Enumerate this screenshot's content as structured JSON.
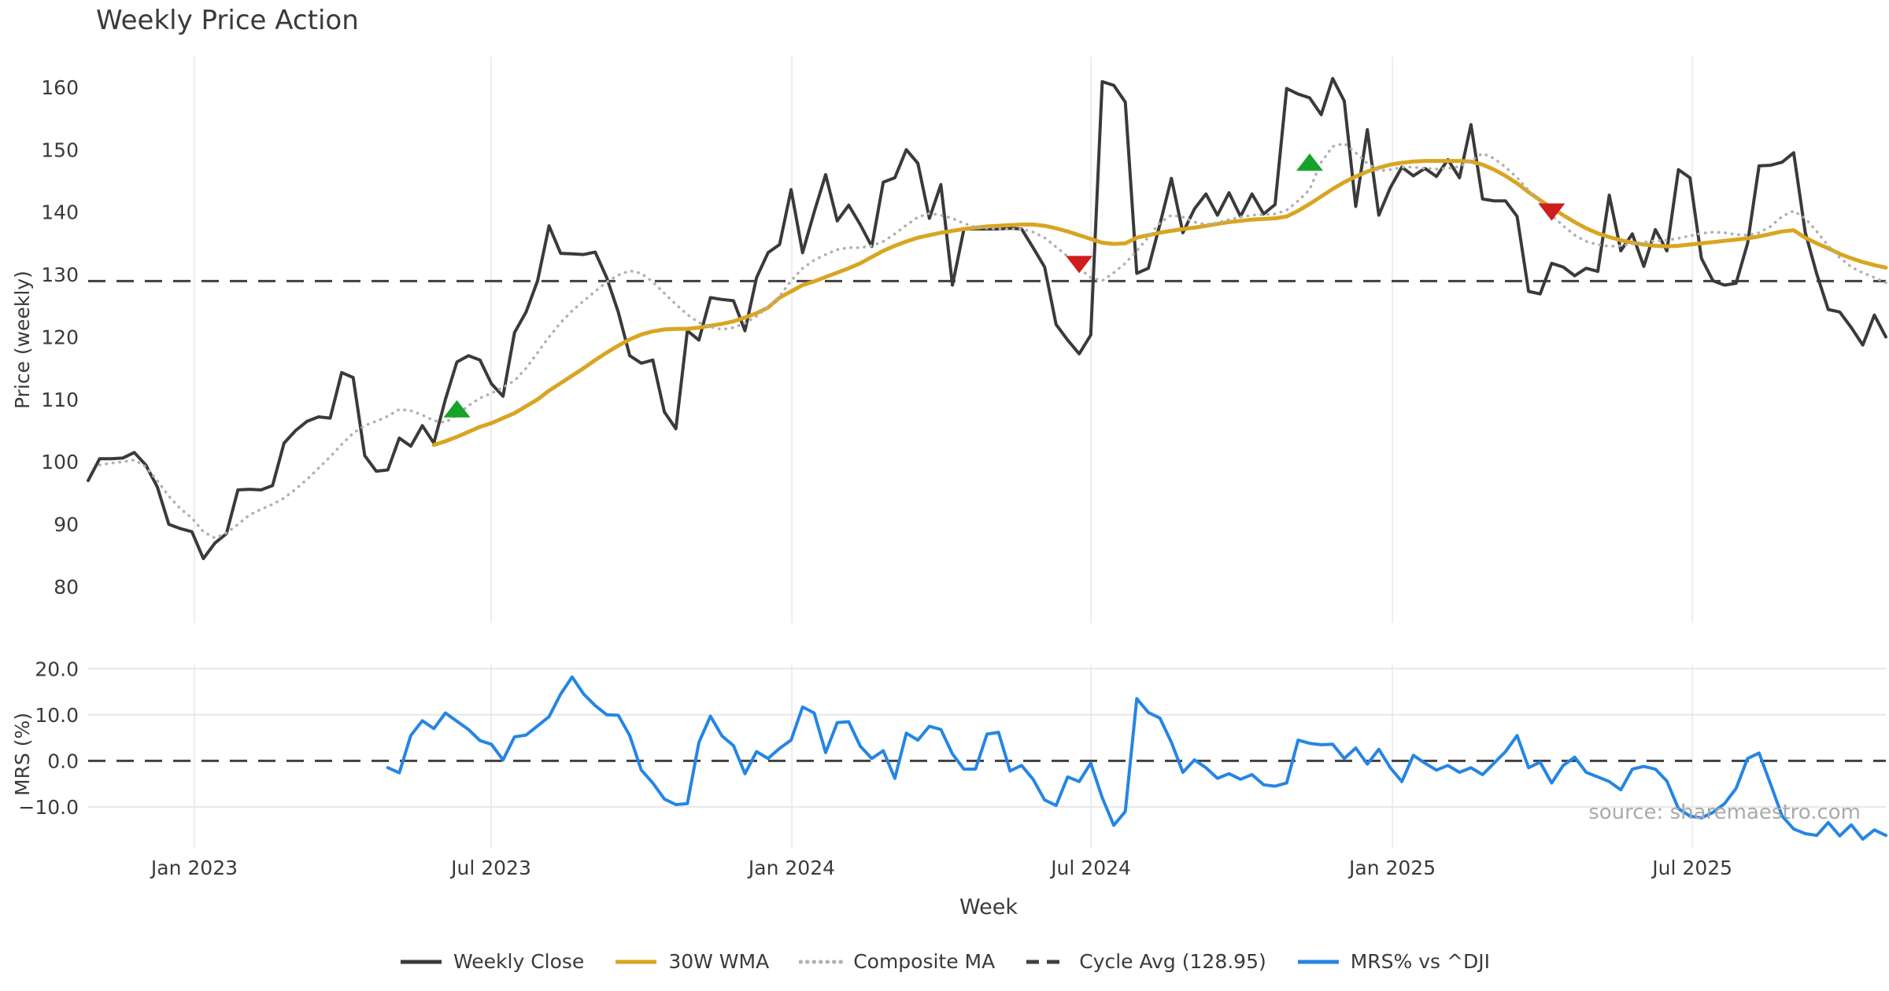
{
  "title": "Weekly Price Action",
  "source_note": "source: sharemaestro.com",
  "legend": [
    {
      "label": "Weekly Close",
      "color": "#3a3a3a",
      "style": "solid"
    },
    {
      "label": "30W WMA",
      "color": "#d9a521",
      "style": "solid"
    },
    {
      "label": "Composite MA",
      "color": "#b0b0b0",
      "style": "dotted"
    },
    {
      "label": "Cycle Avg (128.95)",
      "color": "#404040",
      "style": "dashed"
    },
    {
      "label": "MRS% vs ^DJI",
      "color": "#2585e4",
      "style": "solid"
    }
  ],
  "chart_data": {
    "type": "line",
    "xlabel": "Week",
    "x_ticks": [
      {
        "pos": 9.22,
        "label": "Jan 2023"
      },
      {
        "pos": 34.97,
        "label": "Jul 2023"
      },
      {
        "pos": 61.06,
        "label": "Jan 2024"
      },
      {
        "pos": 87.02,
        "label": "Jul 2024"
      },
      {
        "pos": 113.18,
        "label": "Jan 2025"
      },
      {
        "pos": 139.21,
        "label": "Jul 2025"
      }
    ],
    "weeks_total": 157,
    "panels": [
      {
        "name": "price",
        "ylabel": "Price (weekly)",
        "ylim": [
          74.2,
          164.9
        ],
        "yticks": [
          {
            "v": 80,
            "label": "80"
          },
          {
            "v": 90,
            "label": "90"
          },
          {
            "v": 100,
            "label": "100"
          },
          {
            "v": 110,
            "label": "110"
          },
          {
            "v": 120,
            "label": "120"
          },
          {
            "v": 130,
            "label": "130"
          },
          {
            "v": 140,
            "label": "140"
          },
          {
            "v": 150,
            "label": "150"
          },
          {
            "v": 160,
            "label": "160"
          }
        ],
        "hline": {
          "value": 128.95,
          "label": "Cycle Avg (128.95)",
          "color": "#404040",
          "style": "dashed"
        },
        "series": [
          {
            "name": "Weekly Close",
            "color": "#3a3a3a",
            "width": 4,
            "style": "solid",
            "start_week": 0,
            "values": [
              97.0,
              100.5,
              100.5,
              100.6,
              101.5,
              99.5,
              96.0,
              90.0,
              89.3,
              88.8,
              84.5,
              87.0,
              88.5,
              95.5,
              95.6,
              95.5,
              96.2,
              103.0,
              105.0,
              106.5,
              107.2,
              107.0,
              114.3,
              113.5,
              101.0,
              98.5,
              98.7,
              103.8,
              102.5,
              105.8,
              103.0,
              110.0,
              116.0,
              117.0,
              116.3,
              112.5,
              110.5,
              120.7,
              124.0,
              129.0,
              137.8,
              133.4,
              133.3,
              133.2,
              133.6,
              129.5,
              124.0,
              117.0,
              115.8,
              116.3,
              108.0,
              105.3,
              121.0,
              119.5,
              126.3,
              126.0,
              125.8,
              121.0,
              129.5,
              133.5,
              134.8,
              143.6,
              133.5,
              140.0,
              146.0,
              138.6,
              141.1,
              138.0,
              134.5,
              144.8,
              145.5,
              150.0,
              147.8,
              139.0,
              144.4,
              128.3,
              137.3,
              137.3,
              137.3,
              137.3,
              137.4,
              137.3,
              134.3,
              131.2,
              122.0,
              119.5,
              117.3,
              120.3,
              160.9,
              160.3,
              157.6,
              130.2,
              131.0,
              138.0,
              145.4,
              136.7,
              140.5,
              142.9,
              139.5,
              143.1,
              139.3,
              142.9,
              139.7,
              141.2,
              159.8,
              158.9,
              158.3,
              155.6,
              161.4,
              157.8,
              140.9,
              153.2,
              139.5,
              143.9,
              147.2,
              145.8,
              147.0,
              145.7,
              148.4,
              145.5,
              154.0,
              142.1,
              141.8,
              141.8,
              139.3,
              127.3,
              126.9,
              131.8,
              131.2,
              129.8,
              131.0,
              130.5,
              142.7,
              133.8,
              136.5,
              131.3,
              137.2,
              133.8,
              146.8,
              145.5,
              132.6,
              129.0,
              128.3,
              128.6,
              135.0,
              147.4,
              147.5,
              148.0,
              149.5,
              136.8,
              130.1,
              124.4,
              124.0,
              121.5,
              118.7,
              123.5,
              120.0
            ]
          },
          {
            "name": "30W WMA",
            "color": "#d9a521",
            "width": 5,
            "style": "solid",
            "start_week": 30,
            "values": [
              102.7,
              103.3,
              104.0,
              104.8,
              105.6,
              106.2,
              107.0,
              107.8,
              108.9,
              110.0,
              111.4,
              112.6,
              113.8,
              115.0,
              116.3,
              117.5,
              118.6,
              119.6,
              120.4,
              120.9,
              121.2,
              121.3,
              121.3,
              121.5,
              121.8,
              122.1,
              122.5,
              123.1,
              123.8,
              124.7,
              126.3,
              127.3,
              128.3,
              128.9,
              129.6,
              130.3,
              131.0,
              131.8,
              132.8,
              133.8,
              134.6,
              135.3,
              135.9,
              136.3,
              136.7,
              137.0,
              137.3,
              137.5,
              137.7,
              137.8,
              137.9,
              138.0,
              138.0,
              137.8,
              137.4,
              136.9,
              136.3,
              135.7,
              135.1,
              134.9,
              135.0,
              135.9,
              136.3,
              136.7,
              137.0,
              137.3,
              137.5,
              137.8,
              138.1,
              138.4,
              138.6,
              138.8,
              138.9,
              139.0,
              139.3,
              140.2,
              141.3,
              142.5,
              143.7,
              144.8,
              145.7,
              146.5,
              147.1,
              147.6,
              147.9,
              148.1,
              148.2,
              148.2,
              148.2,
              148.2,
              148.1,
              147.6,
              146.8,
              145.8,
              144.6,
              143.2,
              141.9,
              140.7,
              139.5,
              138.4,
              137.4,
              136.6,
              136.0,
              135.5,
              135.1,
              134.8,
              134.6,
              134.5,
              134.6,
              134.8,
              135.0,
              135.2,
              135.4,
              135.6,
              135.8,
              136.1,
              136.5,
              136.9,
              137.1,
              135.9,
              135.0,
              134.2,
              133.3,
              132.6,
              132.0,
              131.5,
              131.1
            ]
          },
          {
            "name": "Composite MA",
            "color": "#b0b0b0",
            "width": 3.5,
            "style": "dotted",
            "start_week": 1,
            "values": [
              99.5,
              99.8,
              100.0,
              100.3,
              99.2,
              97.0,
              94.5,
              92.5,
              91.0,
              88.8,
              87.8,
              88.6,
              90.0,
              91.5,
              92.4,
              93.2,
              94.2,
              95.6,
              97.2,
              99.0,
              100.8,
              102.8,
              104.6,
              105.8,
              106.5,
              107.3,
              108.4,
              108.2,
              107.5,
              106.6,
              106.3,
              107.5,
              109.0,
              110.2,
              111.0,
              111.9,
              113.0,
              115.0,
              117.5,
              120.0,
              122.3,
              124.2,
              125.8,
              127.3,
              128.8,
              129.9,
              130.6,
              130.2,
              128.8,
              127.0,
              125.2,
              123.6,
              122.3,
              121.6,
              121.2,
              121.5,
              122.2,
              123.3,
              124.8,
              126.5,
              129.0,
              131.0,
              132.3,
              133.2,
              134.0,
              134.3,
              134.3,
              134.6,
              135.3,
              136.5,
              137.9,
              139.2,
              139.8,
              139.5,
              139.0,
              138.2,
              137.6,
              137.4,
              137.3,
              137.3,
              137.3,
              136.8,
              135.9,
              134.4,
              132.9,
              131.0,
              129.5,
              129.0,
              130.3,
              131.8,
              133.8,
              136.0,
              138.3,
              139.5,
              139.2,
              138.4,
              138.0,
              138.3,
              138.8,
              139.2,
              139.5,
              139.6,
              139.7,
              140.3,
              141.8,
              143.6,
              148.0,
              150.5,
              151.0,
              149.5,
              147.8,
              146.6,
              146.8,
              147.2,
              147.2,
              147.0,
              146.9,
              147.0,
              147.3,
              148.2,
              149.4,
              148.6,
              147.2,
              145.5,
              143.5,
              141.5,
              139.5,
              137.8,
              136.3,
              135.3,
              134.8,
              134.5,
              134.6,
              134.9,
              135.2,
              135.4,
              135.5,
              135.8,
              136.2,
              136.6,
              136.8,
              136.7,
              136.4,
              136.3,
              136.7,
              137.7,
              139.3,
              140.2,
              139.0,
              136.9,
              134.6,
              132.7,
              131.2,
              130.3,
              129.5,
              128.7
            ]
          }
        ],
        "markers": [
          {
            "shape": "triangle-up",
            "color": "#16a32b",
            "week": 32,
            "value": 108.5
          },
          {
            "shape": "triangle-up",
            "color": "#16a32b",
            "week": 106,
            "value": 148.0
          },
          {
            "shape": "triangle-down",
            "color": "#cf1d1d",
            "week": 86,
            "value": 131.6
          },
          {
            "shape": "triangle-down",
            "color": "#cf1d1d",
            "week": 127,
            "value": 140.0
          }
        ]
      },
      {
        "name": "mrs",
        "ylabel": "MRS (%)",
        "ylim": [
          -18.9,
          20.9
        ],
        "yticks": [
          {
            "v": 20,
            "label": "20.0"
          },
          {
            "v": 10,
            "label": "10.0"
          },
          {
            "v": 0,
            "label": "0.0"
          },
          {
            "v": -10,
            "label": "−10.0"
          }
        ],
        "hline": {
          "value": 0,
          "color": "#404040",
          "style": "dashed"
        },
        "grid_y": [
          20,
          10,
          -10
        ],
        "series": [
          {
            "name": "MRS% vs ^DJI",
            "color": "#2585e4",
            "width": 4,
            "style": "solid",
            "start_week": 26,
            "values": [
              -1.5,
              -2.6,
              5.5,
              8.7,
              7.0,
              10.4,
              8.6,
              6.8,
              4.4,
              3.6,
              0.2,
              5.2,
              5.6,
              7.6,
              9.6,
              14.5,
              18.2,
              14.5,
              12.0,
              10.0,
              9.9,
              5.5,
              -2.0,
              -4.8,
              -8.3,
              -9.5,
              -9.3,
              4.0,
              9.7,
              5.4,
              3.3,
              -2.8,
              2.0,
              0.5,
              2.7,
              4.5,
              11.7,
              10.4,
              1.8,
              8.3,
              8.5,
              3.2,
              0.5,
              2.2,
              -3.8,
              6.0,
              4.5,
              7.5,
              6.8,
              1.5,
              -1.8,
              -1.8,
              5.8,
              6.2,
              -2.2,
              -1.0,
              -4.0,
              -8.5,
              -9.7,
              -3.5,
              -4.5,
              -0.5,
              -8.0,
              -14.0,
              -11.0,
              13.5,
              10.5,
              9.3,
              4.0,
              -2.5,
              0.2,
              -1.5,
              -3.8,
              -2.8,
              -4.0,
              -3.0,
              -5.2,
              -5.5,
              -4.8,
              4.5,
              3.8,
              3.5,
              3.6,
              0.5,
              2.8,
              -0.7,
              2.5,
              -1.5,
              -4.5,
              1.2,
              -0.5,
              -2.0,
              -1.0,
              -2.5,
              -1.5,
              -3.0,
              -0.5,
              2.0,
              5.5,
              -1.5,
              -0.3,
              -4.8,
              -1.0,
              0.8,
              -2.5,
              -3.5,
              -4.5,
              -6.3,
              -1.8,
              -1.2,
              -1.8,
              -4.4,
              -10.4,
              -12.0,
              -12.4,
              -11.2,
              -9.3,
              -6.0,
              0.5,
              1.7,
              -5.1,
              -12.0,
              -14.8,
              -15.8,
              -16.2,
              -13.4,
              -16.3,
              -13.9,
              -17.0,
              -15.0,
              -16.2
            ]
          }
        ]
      }
    ]
  }
}
